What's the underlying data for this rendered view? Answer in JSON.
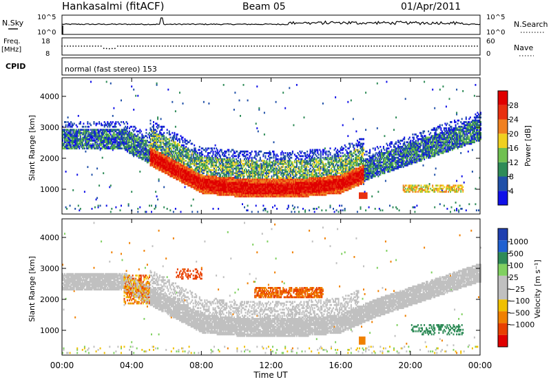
{
  "header": {
    "station": "Hankasalmi (fitACF)",
    "beam": "Beam 05",
    "date": "01/Apr/2011"
  },
  "mini_panels": {
    "nsky_label": "N.Sky",
    "nsearch_label": "N.Search",
    "nsky_ticks": [
      "10^5",
      "10^0"
    ],
    "nsearch_ticks": [
      "10^5",
      "10^0"
    ],
    "freq_label_1": "Freq.",
    "freq_label_2": "[MHz]",
    "freq_ticks": [
      "18",
      "8"
    ],
    "nave_label": "Nave",
    "nave_ticks": [
      "60",
      "0"
    ],
    "cpid_label": "CPID",
    "cpid_text": "normal (fast stereo) 153"
  },
  "colors": {
    "power_scale": [
      "#1010e8",
      "#2050a8",
      "#2e8b57",
      "#70c050",
      "#f0d020",
      "#f08020",
      "#e83010",
      "#e00000"
    ],
    "velocity_scale": [
      "#2040b0",
      "#2060d0",
      "#2e8b57",
      "#80d060",
      "#c0c0c0",
      "#c0c0c0",
      "#f0c000",
      "#f08000",
      "#e84000",
      "#e00000"
    ]
  },
  "chart_data": [
    {
      "type": "heatmap",
      "name_panel": "power",
      "ylabel": "Slant Range [km]",
      "yticks": [
        "4000",
        "3000",
        "2000",
        "1000"
      ],
      "ylim": [
        200,
        4600
      ],
      "xlim": [
        0,
        24
      ],
      "colorbar_label": "Power [dB]",
      "colorbar_ticks": [
        "28",
        "24",
        "20",
        "16",
        "12",
        "8",
        "4"
      ],
      "colorbar_range": [
        0,
        32
      ],
      "bands": [
        {
          "range_start_km": 2250,
          "range_end_km": 3000,
          "level": "8"
        },
        {
          "range_start_km": 1900,
          "range_end_km": 2500,
          "level": "12"
        },
        {
          "range_start_km": 900,
          "range_end_km": 1500,
          "level": "28"
        }
      ]
    },
    {
      "type": "heatmap",
      "name_panel": "velocity",
      "ylabel": "Slant Range [km]",
      "yticks": [
        "4000",
        "3000",
        "2000",
        "1000"
      ],
      "ylim": [
        200,
        4600
      ],
      "xlim": [
        0,
        24
      ],
      "colorbar_label": "Velocity [m s⁻¹]",
      "colorbar_ticks": [
        "1000",
        "500",
        "100",
        "25",
        "−25",
        "−100",
        "−500",
        "−1000"
      ],
      "bands": [
        {
          "range_start_km": 900,
          "range_end_km": 2600,
          "level": "ground scatter"
        },
        {
          "range_start_km": 2000,
          "range_end_km": 2400,
          "level": "-500"
        }
      ]
    }
  ],
  "xaxis": {
    "label": "Time UT",
    "ticks": [
      "00:00",
      "04:00",
      "08:00",
      "12:00",
      "16:00",
      "20:00",
      "00:00"
    ]
  }
}
